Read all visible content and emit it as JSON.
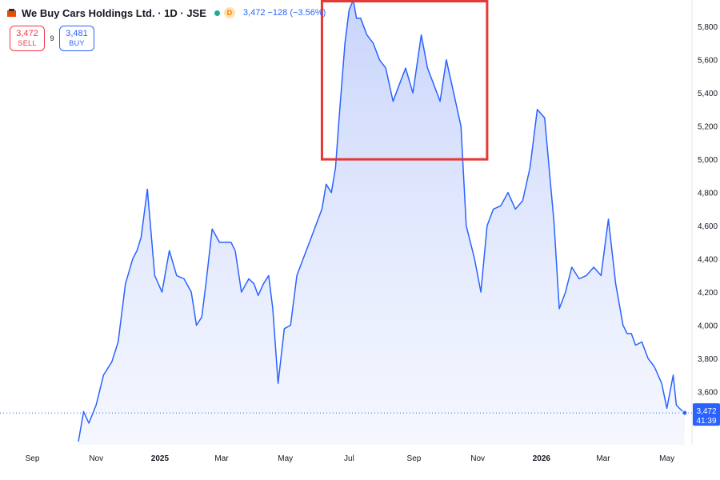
{
  "header": {
    "symbol_title": "We Buy Cars Holdings Ltd. · 1D · JSE",
    "badge": "D",
    "last_info": "3,472  −128 (−3.56%)"
  },
  "trade": {
    "sell_price": "3,472",
    "sell_label": "SELL",
    "spread": "9",
    "buy_price": "3,481",
    "buy_label": "BUY"
  },
  "price_tag": {
    "price": "3,472",
    "countdown": "41:39"
  },
  "colors": {
    "line": "#2962ff",
    "fill_top": "#c5d2fb",
    "highlight_box": "#e53935",
    "sell": "#f23645",
    "buy": "#2962ff"
  },
  "chart_data": {
    "type": "area",
    "title": "We Buy Cars Holdings Ltd. · 1D · JSE",
    "xlabel": "",
    "ylabel": "",
    "y_axis_side": "right",
    "ylim": [
      3280,
      5960
    ],
    "yticks": [
      3600,
      3800,
      4000,
      4200,
      4400,
      4600,
      4800,
      5000,
      5200,
      5400,
      5600,
      5800
    ],
    "ytick_labels": [
      "3,600",
      "3,800",
      "4,000",
      "4,200",
      "4,400",
      "4,600",
      "4,800",
      "5,000",
      "5,200",
      "5,400",
      "5,600",
      "5,800"
    ],
    "xlim": [
      "2024-08-01",
      "2026-05-25"
    ],
    "xticks": [
      "2024-09-01",
      "2024-11-01",
      "2025-01-01",
      "2025-03-01",
      "2025-05-01",
      "2025-07-01",
      "2025-09-01",
      "2025-11-01",
      "2026-01-01",
      "2026-03-01",
      "2026-05-01"
    ],
    "xtick_labels": [
      "Sep",
      "Nov",
      "2025",
      "Mar",
      "May",
      "Jul",
      "Sep",
      "Nov",
      "2026",
      "Mar",
      "May"
    ],
    "grid": false,
    "x": [
      "2024-10-15",
      "2024-10-20",
      "2024-10-25",
      "2024-11-01",
      "2024-11-08",
      "2024-11-16",
      "2024-11-22",
      "2024-11-29",
      "2024-12-06",
      "2024-12-10",
      "2024-12-14",
      "2024-12-20",
      "2024-12-27",
      "2025-01-03",
      "2025-01-10",
      "2025-01-17",
      "2025-01-24",
      "2025-01-31",
      "2025-02-05",
      "2025-02-10",
      "2025-02-14",
      "2025-02-20",
      "2025-02-27",
      "2025-03-04",
      "2025-03-10",
      "2025-03-14",
      "2025-03-20",
      "2025-03-27",
      "2025-04-01",
      "2025-04-05",
      "2025-04-10",
      "2025-04-15",
      "2025-04-19",
      "2025-04-24",
      "2025-04-30",
      "2025-05-06",
      "2025-05-12",
      "2025-05-18",
      "2025-05-24",
      "2025-05-30",
      "2025-06-05",
      "2025-06-09",
      "2025-06-14",
      "2025-06-18",
      "2025-06-22",
      "2025-06-27",
      "2025-07-01",
      "2025-07-05",
      "2025-07-08",
      "2025-07-12",
      "2025-07-18",
      "2025-07-24",
      "2025-07-30",
      "2025-08-05",
      "2025-08-12",
      "2025-08-18",
      "2025-08-24",
      "2025-08-31",
      "2025-09-08",
      "2025-09-14",
      "2025-09-20",
      "2025-09-26",
      "2025-10-02",
      "2025-10-09",
      "2025-10-16",
      "2025-10-21",
      "2025-10-25",
      "2025-10-29",
      "2025-11-04",
      "2025-11-10",
      "2025-11-16",
      "2025-11-23",
      "2025-11-30",
      "2025-12-07",
      "2025-12-14",
      "2025-12-21",
      "2025-12-28",
      "2026-01-04",
      "2026-01-09",
      "2026-01-13",
      "2026-01-18",
      "2026-01-24",
      "2026-01-30",
      "2026-02-06",
      "2026-02-13",
      "2026-02-20",
      "2026-02-27",
      "2026-03-06",
      "2026-03-13",
      "2026-03-20",
      "2026-03-24",
      "2026-03-28",
      "2026-04-01",
      "2026-04-07",
      "2026-04-13",
      "2026-04-19",
      "2026-04-26",
      "2026-05-01",
      "2026-05-07",
      "2026-05-10",
      "2026-05-13",
      "2026-05-18"
    ],
    "series": [
      {
        "values": [
          3300,
          3480,
          3410,
          3520,
          3700,
          3780,
          3900,
          4250,
          4400,
          4450,
          4530,
          4820,
          4300,
          4200,
          4450,
          4300,
          4280,
          4200,
          4000,
          4050,
          4250,
          4580,
          4500,
          4500,
          4500,
          4450,
          4200,
          4280,
          4250,
          4180,
          4250,
          4300,
          4100,
          3650,
          3980,
          4000,
          4300,
          4400,
          4500,
          4600,
          4700,
          4850,
          4800,
          4950,
          5300,
          5700,
          5900,
          5960,
          5850,
          5850,
          5750,
          5700,
          5600,
          5550,
          5350,
          5450,
          5550,
          5400,
          5750,
          5550,
          5450,
          5350,
          5600,
          5400,
          5200,
          4600,
          4500,
          4400,
          4200,
          4600,
          4700,
          4720,
          4800,
          4700,
          4750,
          4950,
          5300,
          5250,
          4900,
          4620,
          4100,
          4200,
          4350,
          4280,
          4300,
          4350,
          4300,
          4640,
          4250,
          4000,
          3950,
          3950,
          3880,
          3900,
          3800,
          3750,
          3650,
          3500,
          3700,
          3520,
          3500,
          3472
        ]
      }
    ],
    "last_price": 3472,
    "annotations": [
      {
        "type": "rectangle",
        "x0": "2025-06-05",
        "x1": "2025-11-10",
        "y0": 5000,
        "y1": 5960
      }
    ]
  }
}
